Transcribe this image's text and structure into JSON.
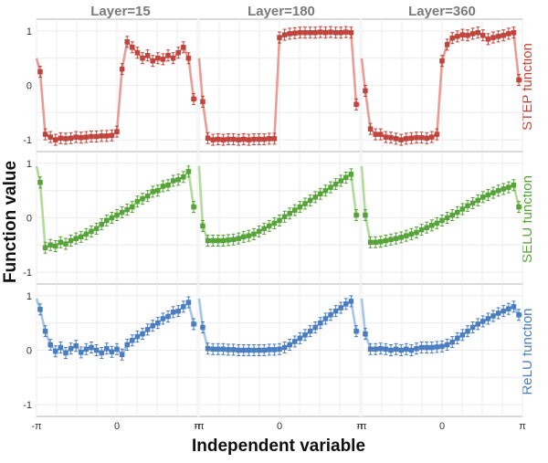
{
  "figure": {
    "xlabel": "Independent variable",
    "ylabel": "Function value",
    "column_titles": [
      "Layer=15",
      "Layer=180",
      "Layer=360"
    ],
    "row_labels": [
      "STEP function",
      "SELU function",
      "ReLU function"
    ],
    "row_colors": [
      "#c0443c",
      "#57a33a",
      "#4a7dbf"
    ],
    "row_line_colors": [
      "#e6928c",
      "#a9d88f",
      "#9cc0e6"
    ],
    "x_tick_labels": [
      "-π",
      "0",
      "π"
    ],
    "y_tick_labels": [
      "1",
      "0",
      "-1"
    ]
  },
  "chart_data": [
    {
      "type": "line",
      "panel": "STEP function, Layer=15",
      "xlim": [
        -3.14159,
        3.14159
      ],
      "ylim": [
        -1.15,
        1.15
      ],
      "x": [
        -3.0,
        -2.8,
        -2.6,
        -2.4,
        -2.2,
        -2.0,
        -1.8,
        -1.6,
        -1.4,
        -1.2,
        -1.0,
        -0.8,
        -0.6,
        -0.4,
        -0.2,
        0.0,
        0.2,
        0.4,
        0.6,
        0.8,
        1.0,
        1.2,
        1.4,
        1.6,
        1.8,
        2.0,
        2.2,
        2.4,
        2.6,
        2.8,
        3.0
      ],
      "series": [
        {
          "values": [
            0.25,
            -0.9,
            -0.95,
            -1.0,
            -0.97,
            -0.98,
            -0.97,
            -0.95,
            -0.96,
            -0.95,
            -0.94,
            -0.94,
            -0.93,
            -0.93,
            -0.92,
            -0.85,
            0.3,
            0.8,
            0.7,
            0.6,
            0.5,
            0.55,
            0.45,
            0.5,
            0.48,
            0.55,
            0.5,
            0.6,
            0.7,
            0.5,
            -0.25
          ]
        }
      ]
    },
    {
      "type": "line",
      "panel": "STEP function, Layer=180",
      "xlim": [
        -3.14159,
        3.14159
      ],
      "ylim": [
        -1.15,
        1.15
      ],
      "x": [
        -3.0,
        -2.8,
        -2.6,
        -2.4,
        -2.2,
        -2.0,
        -1.8,
        -1.6,
        -1.4,
        -1.2,
        -1.0,
        -0.8,
        -0.6,
        -0.4,
        -0.2,
        0.0,
        0.2,
        0.4,
        0.6,
        0.8,
        1.0,
        1.2,
        1.4,
        1.6,
        1.8,
        2.0,
        2.2,
        2.4,
        2.6,
        2.8,
        3.0
      ],
      "series": [
        {
          "values": [
            -0.3,
            -0.97,
            -1.0,
            -0.99,
            -1.0,
            -0.99,
            -0.99,
            -1.0,
            -0.99,
            -1.0,
            -0.99,
            -0.99,
            -0.99,
            -0.98,
            -0.98,
            0.88,
            0.93,
            0.95,
            0.96,
            0.97,
            0.97,
            0.97,
            0.97,
            0.98,
            0.97,
            0.98,
            0.97,
            0.97,
            0.98,
            0.97,
            -0.35
          ]
        }
      ]
    },
    {
      "type": "line",
      "panel": "STEP function, Layer=360",
      "xlim": [
        -3.14159,
        3.14159
      ],
      "ylim": [
        -1.15,
        1.15
      ],
      "x": [
        -3.0,
        -2.8,
        -2.6,
        -2.4,
        -2.2,
        -2.0,
        -1.8,
        -1.6,
        -1.4,
        -1.2,
        -1.0,
        -0.8,
        -0.6,
        -0.4,
        -0.2,
        0.0,
        0.2,
        0.4,
        0.6,
        0.8,
        1.0,
        1.2,
        1.4,
        1.6,
        1.8,
        2.0,
        2.2,
        2.4,
        2.6,
        2.8,
        3.0
      ],
      "series": [
        {
          "values": [
            -0.1,
            -0.8,
            -0.9,
            -0.9,
            -0.95,
            -0.96,
            -0.98,
            -1.0,
            -0.98,
            -0.97,
            -0.96,
            -0.96,
            -0.97,
            -0.95,
            -0.9,
            0.45,
            0.75,
            0.87,
            0.9,
            0.93,
            0.92,
            0.95,
            0.97,
            0.92,
            0.85,
            0.88,
            0.9,
            0.92,
            0.95,
            0.97,
            0.1
          ]
        }
      ]
    },
    {
      "type": "line",
      "panel": "SELU function, Layer=15",
      "xlim": [
        -3.14159,
        3.14159
      ],
      "ylim": [
        -1.15,
        1.15
      ],
      "x": [
        -3.0,
        -2.8,
        -2.6,
        -2.4,
        -2.2,
        -2.0,
        -1.8,
        -1.6,
        -1.4,
        -1.2,
        -1.0,
        -0.8,
        -0.6,
        -0.4,
        -0.2,
        0.0,
        0.2,
        0.4,
        0.6,
        0.8,
        1.0,
        1.2,
        1.4,
        1.6,
        1.8,
        2.0,
        2.2,
        2.4,
        2.6,
        2.8,
        3.0
      ],
      "series": [
        {
          "values": [
            0.65,
            -0.55,
            -0.5,
            -0.52,
            -0.45,
            -0.48,
            -0.42,
            -0.38,
            -0.35,
            -0.3,
            -0.25,
            -0.2,
            -0.12,
            -0.05,
            0.0,
            0.05,
            0.1,
            0.15,
            0.2,
            0.3,
            0.35,
            0.4,
            0.48,
            0.5,
            0.58,
            0.6,
            0.68,
            0.7,
            0.75,
            0.85,
            0.2
          ]
        }
      ]
    },
    {
      "type": "line",
      "panel": "SELU function, Layer=180",
      "xlim": [
        -3.14159,
        3.14159
      ],
      "ylim": [
        -1.15,
        1.15
      ],
      "x": [
        -3.0,
        -2.8,
        -2.6,
        -2.4,
        -2.2,
        -2.0,
        -1.8,
        -1.6,
        -1.4,
        -1.2,
        -1.0,
        -0.8,
        -0.6,
        -0.4,
        -0.2,
        0.0,
        0.2,
        0.4,
        0.6,
        0.8,
        1.0,
        1.2,
        1.4,
        1.6,
        1.8,
        2.0,
        2.2,
        2.4,
        2.6,
        2.8,
        3.0
      ],
      "series": [
        {
          "values": [
            -0.15,
            -0.42,
            -0.42,
            -0.42,
            -0.42,
            -0.41,
            -0.4,
            -0.38,
            -0.35,
            -0.33,
            -0.3,
            -0.25,
            -0.2,
            -0.15,
            -0.1,
            -0.05,
            0.02,
            0.08,
            0.14,
            0.2,
            0.26,
            0.32,
            0.38,
            0.44,
            0.5,
            0.56,
            0.62,
            0.68,
            0.74,
            0.8,
            0.05
          ]
        }
      ]
    },
    {
      "type": "line",
      "panel": "SELU function, Layer=360",
      "xlim": [
        -3.14159,
        3.14159
      ],
      "ylim": [
        -1.15,
        1.15
      ],
      "x": [
        -3.0,
        -2.8,
        -2.6,
        -2.4,
        -2.2,
        -2.0,
        -1.8,
        -1.6,
        -1.4,
        -1.2,
        -1.0,
        -0.8,
        -0.6,
        -0.4,
        -0.2,
        0.0,
        0.2,
        0.4,
        0.6,
        0.8,
        1.0,
        1.2,
        1.4,
        1.6,
        1.8,
        2.0,
        2.2,
        2.4,
        2.6,
        2.8,
        3.0
      ],
      "series": [
        {
          "values": [
            0.05,
            -0.45,
            -0.45,
            -0.44,
            -0.42,
            -0.4,
            -0.38,
            -0.36,
            -0.33,
            -0.3,
            -0.27,
            -0.22,
            -0.18,
            -0.14,
            -0.1,
            -0.05,
            0.0,
            0.05,
            0.1,
            0.16,
            0.22,
            0.27,
            0.32,
            0.38,
            0.42,
            0.46,
            0.5,
            0.53,
            0.56,
            0.6,
            0.2
          ]
        }
      ]
    },
    {
      "type": "line",
      "panel": "ReLU function, Layer=15",
      "xlim": [
        -3.14159,
        3.14159
      ],
      "ylim": [
        -1.15,
        1.15
      ],
      "x": [
        -3.0,
        -2.8,
        -2.6,
        -2.4,
        -2.2,
        -2.0,
        -1.8,
        -1.6,
        -1.4,
        -1.2,
        -1.0,
        -0.8,
        -0.6,
        -0.4,
        -0.2,
        0.0,
        0.2,
        0.4,
        0.6,
        0.8,
        1.0,
        1.2,
        1.4,
        1.6,
        1.8,
        2.0,
        2.2,
        2.4,
        2.6,
        2.8,
        3.0
      ],
      "series": [
        {
          "values": [
            0.75,
            0.35,
            0.1,
            -0.02,
            0.05,
            -0.05,
            0.03,
            0.08,
            -0.04,
            0.02,
            0.05,
            0.0,
            -0.05,
            0.03,
            -0.03,
            0.02,
            -0.08,
            0.1,
            0.18,
            0.25,
            0.3,
            0.38,
            0.45,
            0.5,
            0.58,
            0.62,
            0.7,
            0.72,
            0.8,
            0.88,
            0.48
          ]
        }
      ]
    },
    {
      "type": "line",
      "panel": "ReLU function, Layer=180",
      "xlim": [
        -3.14159,
        3.14159
      ],
      "ylim": [
        -1.15,
        1.15
      ],
      "x": [
        -3.0,
        -2.8,
        -2.6,
        -2.4,
        -2.2,
        -2.0,
        -1.8,
        -1.6,
        -1.4,
        -1.2,
        -1.0,
        -0.8,
        -0.6,
        -0.4,
        -0.2,
        0.0,
        0.2,
        0.4,
        0.6,
        0.8,
        1.0,
        1.2,
        1.4,
        1.6,
        1.8,
        2.0,
        2.2,
        2.4,
        2.6,
        2.8,
        3.0
      ],
      "series": [
        {
          "values": [
            0.42,
            0.03,
            0.02,
            0.02,
            0.02,
            0.01,
            0.01,
            0.0,
            0.0,
            0.0,
            0.0,
            0.0,
            0.0,
            0.01,
            0.01,
            0.02,
            0.05,
            0.1,
            0.16,
            0.22,
            0.28,
            0.35,
            0.42,
            0.5,
            0.58,
            0.65,
            0.72,
            0.78,
            0.85,
            0.9,
            0.35
          ]
        }
      ]
    },
    {
      "type": "line",
      "panel": "ReLU function, Layer=360",
      "xlim": [
        -3.14159,
        3.14159
      ],
      "ylim": [
        -1.15,
        1.15
      ],
      "x": [
        -3.0,
        -2.8,
        -2.6,
        -2.4,
        -2.2,
        -2.0,
        -1.8,
        -1.6,
        -1.4,
        -1.2,
        -1.0,
        -0.8,
        -0.6,
        -0.4,
        -0.2,
        0.0,
        0.2,
        0.4,
        0.6,
        0.8,
        1.0,
        1.2,
        1.4,
        1.6,
        1.8,
        2.0,
        2.2,
        2.4,
        2.6,
        2.8,
        3.0
      ],
      "series": [
        {
          "values": [
            0.3,
            0.02,
            0.02,
            0.03,
            0.02,
            0.0,
            0.02,
            0.0,
            0.02,
            0.0,
            0.03,
            0.05,
            0.05,
            0.05,
            0.06,
            0.07,
            0.1,
            0.15,
            0.22,
            0.28,
            0.35,
            0.42,
            0.48,
            0.53,
            0.58,
            0.63,
            0.68,
            0.72,
            0.76,
            0.8,
            0.65
          ]
        }
      ]
    }
  ]
}
